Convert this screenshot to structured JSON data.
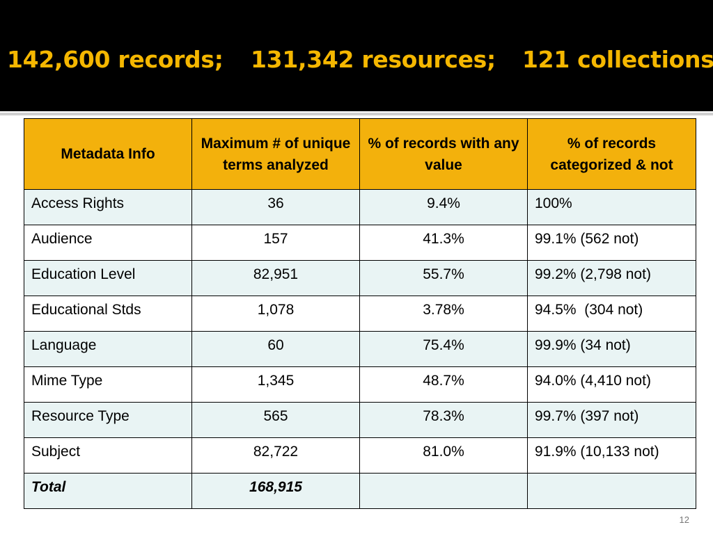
{
  "title": {
    "records": "142,600 records;",
    "resources": "131,342 resources;",
    "collections": "121 collections"
  },
  "colors": {
    "title_bg": "#000000",
    "title_text": "#f5b700",
    "header_bg": "#f3b10c",
    "row_tint": "#e9f4f4"
  },
  "table": {
    "headers": [
      "Metadata Info",
      "Maximum # of unique terms analyzed",
      "% of records with any value",
      "% of records categorized & not"
    ],
    "rows": [
      {
        "label": "Access Rights",
        "terms": "36",
        "any_value": "9.4%",
        "categorized": "100%"
      },
      {
        "label": "Audience",
        "terms": "157",
        "any_value": "41.3%",
        "categorized": "99.1% (562 not)"
      },
      {
        "label": "Education Level",
        "terms": "82,951",
        "any_value": "55.7%",
        "categorized": "99.2% (2,798 not)"
      },
      {
        "label": "Educational Stds",
        "terms": "1,078",
        "any_value": "3.78%",
        "categorized": "94.5%  (304 not)"
      },
      {
        "label": "Language",
        "terms": "60",
        "any_value": "75.4%",
        "categorized": "99.9% (34 not)"
      },
      {
        "label": "Mime Type",
        "terms": "1,345",
        "any_value": "48.7%",
        "categorized": "94.0% (4,410 not)"
      },
      {
        "label": "Resource Type",
        "terms": "565",
        "any_value": "78.3%",
        "categorized": "99.7% (397 not)"
      },
      {
        "label": "Subject",
        "terms": "82,722",
        "any_value": "81.0%",
        "categorized": "91.9% (10,133 not)"
      }
    ],
    "total": {
      "label": "Total",
      "terms": "168,915",
      "any_value": "",
      "categorized": ""
    }
  },
  "page_number": "12"
}
